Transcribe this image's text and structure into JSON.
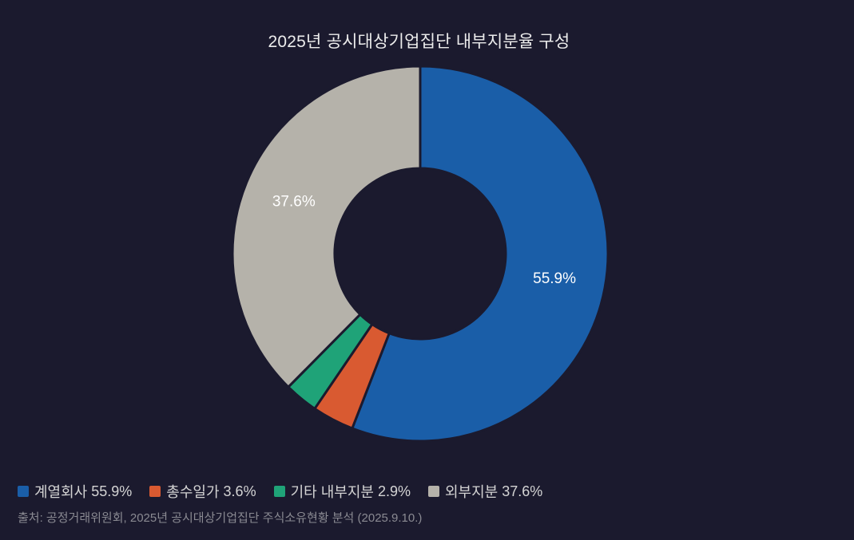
{
  "chart_data": {
    "type": "pie",
    "title": "2025년 공시대상기업집단 내부지분율 구성",
    "categories": [
      "계열회사",
      "총수일가",
      "기타 내부지분",
      "외부지분"
    ],
    "values": [
      55.9,
      3.6,
      2.9,
      37.6
    ],
    "value_labels": [
      "55.9%",
      "3.6%",
      "2.9%",
      "37.6%"
    ],
    "colors": [
      "#1a5ea8",
      "#d95a31",
      "#1fa378",
      "#b5b2aa"
    ],
    "donut": true,
    "legend_position": "bottom-left",
    "source": "출처: 공정거래위원회, 2025년 공시대상기업집단 주식소유현황 분석 (2025.9.10.)"
  }
}
